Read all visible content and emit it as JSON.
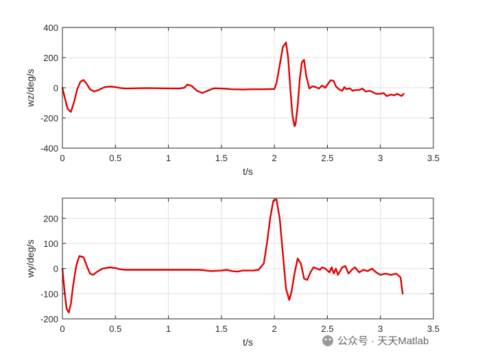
{
  "chart_data": [
    {
      "type": "line",
      "xlabel": "t/s",
      "ylabel": "wz/deg/s",
      "xlim": [
        0,
        3.5
      ],
      "ylim": [
        -400,
        400
      ],
      "xticks": [
        0,
        0.5,
        1,
        1.5,
        2,
        2.5,
        3,
        3.5
      ],
      "xtick_labels": [
        "0",
        "0.5",
        "1",
        "1.5",
        "2",
        "2.5",
        "3",
        "3.5"
      ],
      "yticks": [
        -400,
        -200,
        0,
        200,
        400
      ],
      "ytick_labels": [
        "-400",
        "-200",
        "0",
        "200",
        "400"
      ],
      "grid": true,
      "color": "#e00000",
      "series": [
        {
          "x": [
            0,
            0.02,
            0.05,
            0.08,
            0.11,
            0.14,
            0.17,
            0.2,
            0.23,
            0.26,
            0.3,
            0.34,
            0.4,
            0.45,
            0.5,
            0.55,
            0.6,
            0.7,
            0.8,
            0.9,
            1.0,
            1.1,
            1.15,
            1.18,
            1.22,
            1.27,
            1.32,
            1.37,
            1.43,
            1.5,
            1.6,
            1.7,
            1.8,
            1.9,
            2.0,
            2.02,
            2.05,
            2.08,
            2.11,
            2.13,
            2.15,
            2.17,
            2.19,
            2.2,
            2.22,
            2.24,
            2.26,
            2.28,
            2.3,
            2.33,
            2.36,
            2.39,
            2.42,
            2.45,
            2.48,
            2.5,
            2.53,
            2.56,
            2.58,
            2.61,
            2.64,
            2.66,
            2.68,
            2.71,
            2.74,
            2.76,
            2.8,
            2.83,
            2.86,
            2.9,
            2.93,
            2.96,
            3.0,
            3.03,
            3.06,
            3.1,
            3.13,
            3.16,
            3.2,
            3.22
          ],
          "y": [
            0,
            -60,
            -140,
            -160,
            -95,
            -10,
            40,
            52,
            25,
            -10,
            -25,
            -15,
            5,
            8,
            5,
            -2,
            -5,
            -3,
            -2,
            -3,
            -4,
            -5,
            0,
            22,
            12,
            -20,
            -35,
            -20,
            -3,
            -5,
            -10,
            -12,
            -10,
            -10,
            -8,
            30,
            150,
            270,
            300,
            200,
            0,
            -180,
            -255,
            -240,
            -120,
            60,
            170,
            185,
            80,
            -5,
            10,
            5,
            -5,
            15,
            0,
            20,
            50,
            45,
            10,
            -10,
            -20,
            5,
            -10,
            -3,
            -20,
            -15,
            -15,
            -5,
            -25,
            -20,
            -30,
            -40,
            -40,
            -35,
            -55,
            -45,
            -50,
            -40,
            -55,
            -40
          ]
        }
      ]
    },
    {
      "type": "line",
      "xlabel": "t/s",
      "ylabel": "wy/deg/s",
      "xlim": [
        0,
        3.5
      ],
      "ylim": [
        -200,
        280
      ],
      "xticks": [
        0,
        0.5,
        1,
        1.5,
        2,
        2.5,
        3,
        3.5
      ],
      "xtick_labels": [
        "0",
        "0.5",
        "1",
        "1.5",
        "2",
        "2.5",
        "3",
        "3.5"
      ],
      "yticks": [
        -200,
        -100,
        0,
        100,
        200
      ],
      "ytick_labels": [
        "-200",
        "-100",
        "0",
        "100",
        "200"
      ],
      "grid": true,
      "color": "#e00000",
      "series": [
        {
          "x": [
            0,
            0.02,
            0.04,
            0.06,
            0.08,
            0.1,
            0.13,
            0.16,
            0.2,
            0.23,
            0.26,
            0.29,
            0.33,
            0.38,
            0.45,
            0.5,
            0.55,
            0.6,
            0.7,
            0.8,
            0.9,
            1.0,
            1.1,
            1.2,
            1.3,
            1.4,
            1.5,
            1.55,
            1.6,
            1.65,
            1.7,
            1.8,
            1.85,
            1.9,
            1.93,
            1.96,
            1.99,
            2.02,
            2.05,
            2.08,
            2.11,
            2.14,
            2.16,
            2.19,
            2.22,
            2.25,
            2.28,
            2.31,
            2.34,
            2.37,
            2.4,
            2.43,
            2.45,
            2.48,
            2.52,
            2.54,
            2.56,
            2.58,
            2.6,
            2.64,
            2.67,
            2.7,
            2.73,
            2.76,
            2.8,
            2.84,
            2.88,
            2.92,
            2.96,
            3.0,
            3.05,
            3.1,
            3.15,
            3.19,
            3.21
          ],
          "y": [
            0,
            -90,
            -160,
            -175,
            -140,
            -70,
            10,
            50,
            45,
            10,
            -20,
            -25,
            -12,
            0,
            5,
            2,
            -3,
            -5,
            -5,
            -5,
            -5,
            -5,
            -5,
            -5,
            -5,
            -10,
            -8,
            -5,
            -10,
            -12,
            -8,
            -8,
            -5,
            20,
            100,
            200,
            270,
            275,
            200,
            60,
            -80,
            -125,
            -95,
            -20,
            40,
            20,
            -40,
            -45,
            -15,
            5,
            0,
            -5,
            5,
            0,
            -15,
            5,
            -20,
            0,
            -25,
            5,
            10,
            -20,
            -5,
            5,
            -15,
            -5,
            -10,
            0,
            -15,
            -25,
            -20,
            -25,
            -20,
            -35,
            -100
          ]
        }
      ]
    }
  ],
  "watermark": "公众号 · 天天Matlab"
}
